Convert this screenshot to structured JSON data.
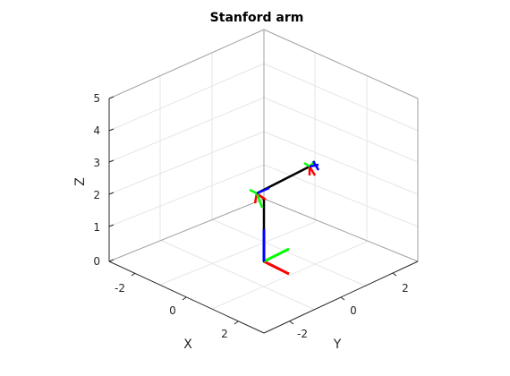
{
  "title": "Stanford arm",
  "axes": {
    "x_label": "X",
    "y_label": "Y",
    "z_label": "Z",
    "x_ticks": [
      "-2",
      "0",
      "2"
    ],
    "y_ticks": [
      "-2",
      "0",
      "2"
    ],
    "z_ticks": [
      "0",
      "1",
      "2",
      "3",
      "4",
      "5"
    ],
    "grid": "on",
    "box": "on"
  },
  "colors": {
    "link": "#000000",
    "frame_x": "#ff0000",
    "frame_y": "#00ff00",
    "frame_z": "#0000ff",
    "grid": "#e6e6e6",
    "box": "#a0a0a0",
    "ticks": "#262626"
  }
}
